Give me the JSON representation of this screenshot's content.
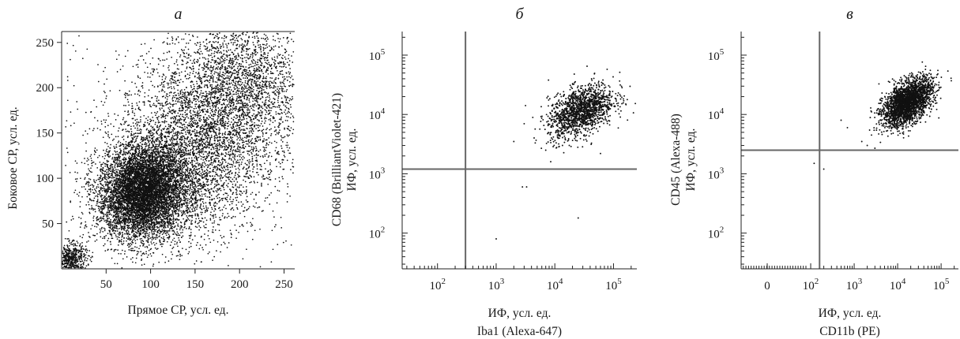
{
  "chart_data": [
    {
      "type": "scatter",
      "panel_letter": "а",
      "xlabel": "Прямое СР, усл. ед.",
      "ylabel": "Боковое СР, усл. ед.",
      "xscale": "linear",
      "yscale": "linear",
      "xlim": [
        0,
        262
      ],
      "ylim": [
        0,
        262
      ],
      "xticks": [
        50,
        100,
        150,
        200,
        250
      ],
      "yticks": [
        50,
        100,
        150,
        200,
        250
      ],
      "clusters": [
        {
          "center": [
            88,
            78
          ],
          "spread": [
            24,
            24
          ],
          "count": 5200
        },
        {
          "center": [
            100,
            102
          ],
          "spread": [
            22,
            20
          ],
          "count": 1800
        },
        {
          "center": [
            145,
            130
          ],
          "spread": [
            40,
            48
          ],
          "count": 3200
        },
        {
          "center": [
            205,
            200
          ],
          "spread": [
            38,
            40
          ],
          "count": 2400
        },
        {
          "center": [
            10,
            10
          ],
          "spread": [
            9,
            9
          ],
          "count": 600
        },
        {
          "center": [
            130,
            130
          ],
          "spread": [
            75,
            75
          ],
          "count": 700
        }
      ]
    },
    {
      "type": "scatter",
      "panel_letter": "б",
      "xlabel": "ИФ, усл. ед.",
      "xlabel2": "Iba1 (Alexa-647)",
      "ylabel": "CD68 (BrilliantViolet-421)",
      "ylabel2": "ИФ, усл. ед.",
      "xscale": "log",
      "yscale": "log",
      "xlim": [
        25,
        250000
      ],
      "ylim": [
        25,
        250000
      ],
      "xticks": [
        {
          "value": 100,
          "base": "10",
          "exp": "2"
        },
        {
          "value": 1000,
          "base": "10",
          "exp": "3"
        },
        {
          "value": 10000,
          "base": "10",
          "exp": "4"
        },
        {
          "value": 100000,
          "base": "10",
          "exp": "5"
        }
      ],
      "yticks": [
        {
          "value": 100,
          "base": "10",
          "exp": "2"
        },
        {
          "value": 1000,
          "base": "10",
          "exp": "3"
        },
        {
          "value": 10000,
          "base": "10",
          "exp": "4"
        },
        {
          "value": 100000,
          "base": "10",
          "exp": "5"
        }
      ],
      "gate": {
        "x": 300,
        "y": 1200
      },
      "clusters": [
        {
          "center": [
            28000,
            11500
          ],
          "spread_log": [
            0.28,
            0.2
          ],
          "count": 1500
        }
      ],
      "outliers": [
        [
          1000,
          80
        ],
        [
          2800,
          600
        ],
        [
          3300,
          600
        ],
        [
          2000,
          3500
        ],
        [
          3000,
          7000
        ],
        [
          25000,
          180
        ],
        [
          7000,
          2500
        ],
        [
          60000,
          2200
        ],
        [
          8500,
          1600
        ]
      ]
    },
    {
      "type": "scatter",
      "panel_letter": "в",
      "xlabel": "ИФ, усл. ед.",
      "xlabel2": "CD11b (PE)",
      "ylabel": "CD45 (Alexa-488)",
      "ylabel2": "ИФ, усл. ед.",
      "xscale": "biexponential",
      "yscale": "log",
      "xlim": [
        -60,
        250000
      ],
      "ylim": [
        25,
        250000
      ],
      "xticks": [
        {
          "value": 0,
          "base": "0",
          "exp": ""
        },
        {
          "value": 100,
          "base": "10",
          "exp": "2"
        },
        {
          "value": 1000,
          "base": "10",
          "exp": "3"
        },
        {
          "value": 10000,
          "base": "10",
          "exp": "4"
        },
        {
          "value": 100000,
          "base": "10",
          "exp": "5"
        }
      ],
      "yticks": [
        {
          "value": 100,
          "base": "10",
          "exp": "2"
        },
        {
          "value": 1000,
          "base": "10",
          "exp": "3"
        },
        {
          "value": 10000,
          "base": "10",
          "exp": "4"
        },
        {
          "value": 100000,
          "base": "10",
          "exp": "5"
        }
      ],
      "gate": {
        "x": 160,
        "y": 2500
      },
      "clusters": [
        {
          "center": [
            17000,
            16000
          ],
          "spread_log": [
            0.28,
            0.17
          ],
          "count": 2600
        }
      ],
      "outliers": [
        [
          120,
          1500
        ],
        [
          200,
          1200
        ],
        [
          3000,
          2700
        ],
        [
          1500,
          2500
        ],
        [
          2000,
          3000
        ],
        [
          700,
          6000
        ],
        [
          500,
          8000
        ],
        [
          2500,
          4500
        ],
        [
          1500,
          3500
        ]
      ]
    }
  ]
}
